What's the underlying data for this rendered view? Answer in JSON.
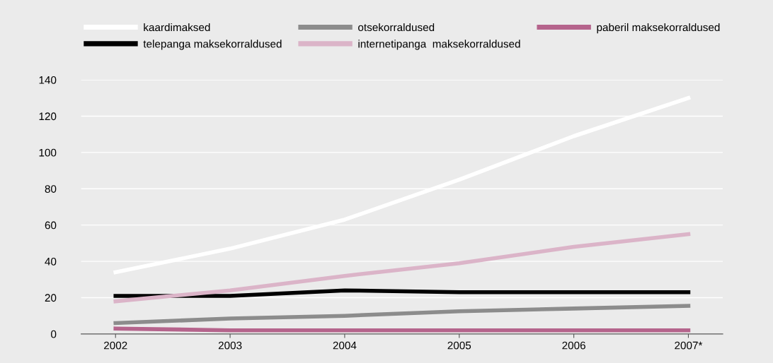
{
  "chart_data": {
    "type": "line",
    "categories": [
      "2002",
      "2003",
      "2004",
      "2005",
      "2006",
      "2007*"
    ],
    "series": [
      {
        "name": "kaardimaksed",
        "color": "#ffffff",
        "values": [
          34,
          47,
          63,
          85,
          109,
          130
        ]
      },
      {
        "name": "otsekorraldused",
        "color": "#8c8c8c",
        "values": [
          6,
          8.5,
          10,
          12.5,
          14,
          15.5
        ]
      },
      {
        "name": "paberil maksekorraldused",
        "color": "#b5648c",
        "values": [
          3,
          2,
          2,
          2,
          2,
          2
        ]
      },
      {
        "name": "telepanga maksekorraldused",
        "color": "#000000",
        "values": [
          21,
          21,
          24,
          23,
          23,
          23
        ]
      },
      {
        "name": "internetipanga  maksekorraldused",
        "color": "#dbb4c8",
        "values": [
          18,
          24,
          32,
          39,
          48,
          55
        ]
      }
    ],
    "ylim": [
      0,
      140
    ],
    "yticks": [
      0,
      20,
      40,
      60,
      80,
      100,
      120,
      140
    ],
    "grid": "y",
    "legend": "top",
    "marker": "none",
    "line_style": "solid"
  }
}
